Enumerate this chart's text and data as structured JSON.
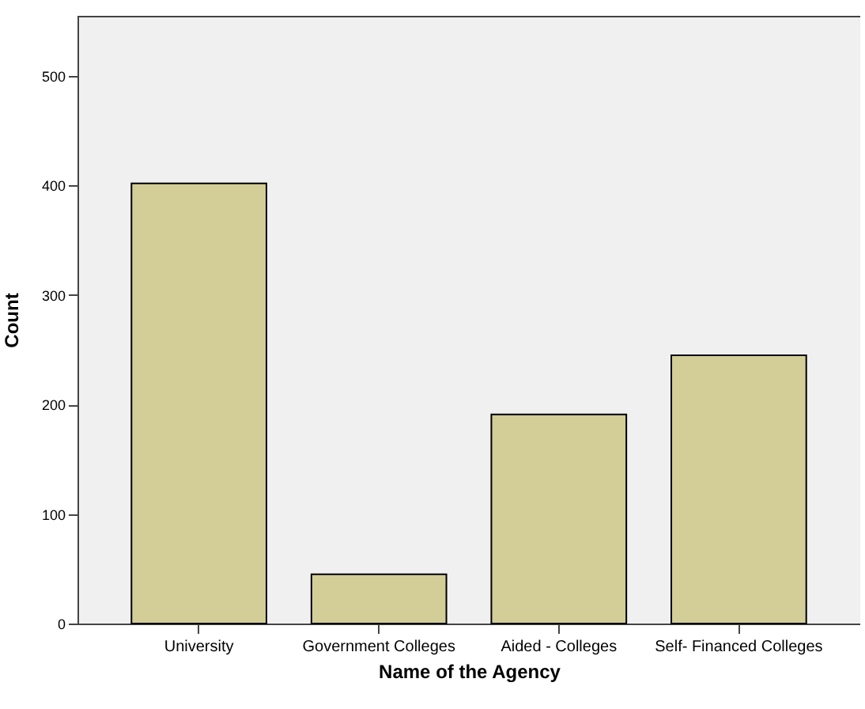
{
  "chart_data": {
    "type": "bar",
    "xlabel": "Name of the Agency",
    "ylabel": "Count",
    "categories": [
      "University",
      "Government Colleges",
      "Aided - Colleges",
      "Self- Financed Colleges"
    ],
    "values": [
      402,
      45,
      191,
      245
    ],
    "color": "#d3ce97",
    "ylim": [
      0,
      555
    ],
    "yticks": [
      0,
      100,
      200,
      300,
      400,
      500
    ],
    "grid": false
  }
}
